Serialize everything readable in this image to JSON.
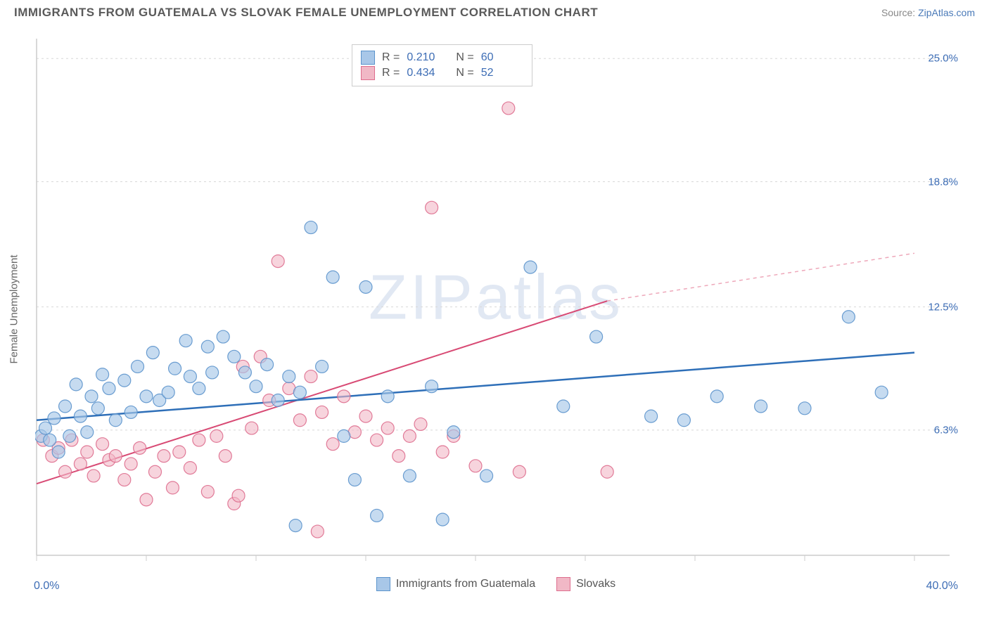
{
  "header": {
    "title": "IMMIGRANTS FROM GUATEMALA VS SLOVAK FEMALE UNEMPLOYMENT CORRELATION CHART",
    "source_prefix": "Source: ",
    "source_link": "ZipAtlas.com"
  },
  "chart": {
    "type": "scatter",
    "ylabel": "Female Unemployment",
    "watermark": "ZIPatlas",
    "background_color": "#ffffff",
    "grid_color": "#d8d8d8",
    "axis_color": "#cccccc",
    "tick_label_color": "#3d6db5",
    "xlim": [
      0,
      40
    ],
    "ylim": [
      0,
      26
    ],
    "x_axis": {
      "min_label": "0.0%",
      "max_label": "40.0%",
      "ticks": [
        0,
        5,
        10,
        15,
        20,
        25,
        30,
        35,
        40
      ]
    },
    "y_axis": {
      "ticks": [
        {
          "v": 6.3,
          "label": "6.3%"
        },
        {
          "v": 12.5,
          "label": "12.5%"
        },
        {
          "v": 18.8,
          "label": "18.8%"
        },
        {
          "v": 25.0,
          "label": "25.0%"
        }
      ]
    },
    "series": [
      {
        "name": "Immigrants from Guatemala",
        "color_fill": "#a8c7e8",
        "color_stroke": "#5c94cc",
        "marker_radius": 9,
        "marker_opacity": 0.65,
        "trend": {
          "x1": 0,
          "y1": 6.8,
          "x2": 40,
          "y2": 10.2,
          "color": "#2e6fb8",
          "width": 2.5,
          "dash": "none"
        },
        "stats": {
          "R_label": "R  =",
          "R": "0.210",
          "N_label": "N  =",
          "N": "60"
        },
        "points": [
          [
            0.2,
            6.0
          ],
          [
            0.4,
            6.4
          ],
          [
            0.6,
            5.8
          ],
          [
            0.8,
            6.9
          ],
          [
            1.0,
            5.2
          ],
          [
            1.3,
            7.5
          ],
          [
            1.5,
            6.0
          ],
          [
            1.8,
            8.6
          ],
          [
            2.0,
            7.0
          ],
          [
            2.3,
            6.2
          ],
          [
            2.5,
            8.0
          ],
          [
            2.8,
            7.4
          ],
          [
            3.0,
            9.1
          ],
          [
            3.3,
            8.4
          ],
          [
            3.6,
            6.8
          ],
          [
            4.0,
            8.8
          ],
          [
            4.3,
            7.2
          ],
          [
            4.6,
            9.5
          ],
          [
            5.0,
            8.0
          ],
          [
            5.3,
            10.2
          ],
          [
            5.6,
            7.8
          ],
          [
            6.0,
            8.2
          ],
          [
            6.3,
            9.4
          ],
          [
            6.8,
            10.8
          ],
          [
            7.0,
            9.0
          ],
          [
            7.4,
            8.4
          ],
          [
            7.8,
            10.5
          ],
          [
            8.0,
            9.2
          ],
          [
            8.5,
            11.0
          ],
          [
            9.0,
            10.0
          ],
          [
            9.5,
            9.2
          ],
          [
            10.0,
            8.5
          ],
          [
            10.5,
            9.6
          ],
          [
            11.0,
            7.8
          ],
          [
            11.5,
            9.0
          ],
          [
            12.0,
            8.2
          ],
          [
            12.5,
            16.5
          ],
          [
            13.0,
            9.5
          ],
          [
            13.5,
            14.0
          ],
          [
            14.0,
            6.0
          ],
          [
            14.5,
            3.8
          ],
          [
            15.0,
            13.5
          ],
          [
            15.5,
            2.0
          ],
          [
            16.0,
            8.0
          ],
          [
            17.0,
            4.0
          ],
          [
            18.0,
            8.5
          ],
          [
            18.5,
            1.8
          ],
          [
            19.0,
            6.2
          ],
          [
            20.5,
            4.0
          ],
          [
            22.5,
            14.5
          ],
          [
            24.0,
            7.5
          ],
          [
            25.5,
            11.0
          ],
          [
            28.0,
            7.0
          ],
          [
            29.5,
            6.8
          ],
          [
            31.0,
            8.0
          ],
          [
            33.0,
            7.5
          ],
          [
            35.0,
            7.4
          ],
          [
            37.0,
            12.0
          ],
          [
            38.5,
            8.2
          ],
          [
            11.8,
            1.5
          ]
        ]
      },
      {
        "name": "Slovaks",
        "color_fill": "#f1b8c6",
        "color_stroke": "#de6e8e",
        "marker_radius": 9,
        "marker_opacity": 0.6,
        "trend_solid": {
          "x1": 0,
          "y1": 3.6,
          "x2": 26,
          "y2": 12.8,
          "color": "#d84a74",
          "width": 2,
          "dash": "none"
        },
        "trend_dash": {
          "x1": 26,
          "y1": 12.8,
          "x2": 40,
          "y2": 15.2,
          "color": "#eea8ba",
          "width": 1.5,
          "dash": "5,5"
        },
        "stats": {
          "R_label": "R  =",
          "R": "0.434",
          "N_label": "N  =",
          "N": "52"
        },
        "points": [
          [
            0.3,
            5.8
          ],
          [
            0.7,
            5.0
          ],
          [
            1.0,
            5.4
          ],
          [
            1.3,
            4.2
          ],
          [
            1.6,
            5.8
          ],
          [
            2.0,
            4.6
          ],
          [
            2.3,
            5.2
          ],
          [
            2.6,
            4.0
          ],
          [
            3.0,
            5.6
          ],
          [
            3.3,
            4.8
          ],
          [
            3.6,
            5.0
          ],
          [
            4.0,
            3.8
          ],
          [
            4.3,
            4.6
          ],
          [
            4.7,
            5.4
          ],
          [
            5.0,
            2.8
          ],
          [
            5.4,
            4.2
          ],
          [
            5.8,
            5.0
          ],
          [
            6.2,
            3.4
          ],
          [
            6.5,
            5.2
          ],
          [
            7.0,
            4.4
          ],
          [
            7.4,
            5.8
          ],
          [
            7.8,
            3.2
          ],
          [
            8.2,
            6.0
          ],
          [
            8.6,
            5.0
          ],
          [
            9.0,
            2.6
          ],
          [
            9.4,
            9.5
          ],
          [
            9.8,
            6.4
          ],
          [
            10.2,
            10.0
          ],
          [
            10.6,
            7.8
          ],
          [
            11.0,
            14.8
          ],
          [
            11.5,
            8.4
          ],
          [
            12.0,
            6.8
          ],
          [
            12.5,
            9.0
          ],
          [
            13.0,
            7.2
          ],
          [
            13.5,
            5.6
          ],
          [
            14.0,
            8.0
          ],
          [
            14.5,
            6.2
          ],
          [
            15.0,
            7.0
          ],
          [
            15.5,
            5.8
          ],
          [
            16.0,
            6.4
          ],
          [
            16.5,
            5.0
          ],
          [
            17.0,
            6.0
          ],
          [
            17.5,
            6.6
          ],
          [
            18.0,
            17.5
          ],
          [
            18.5,
            5.2
          ],
          [
            19.0,
            6.0
          ],
          [
            20.0,
            4.5
          ],
          [
            21.5,
            22.5
          ],
          [
            22.0,
            4.2
          ],
          [
            26.0,
            4.2
          ],
          [
            12.8,
            1.2
          ],
          [
            9.2,
            3.0
          ]
        ]
      }
    ],
    "legend_bottom": [
      {
        "label": "Immigrants from Guatemala",
        "fill": "#a8c7e8",
        "stroke": "#5c94cc"
      },
      {
        "label": "Slovaks",
        "fill": "#f1b8c6",
        "stroke": "#de6e8e"
      }
    ]
  }
}
